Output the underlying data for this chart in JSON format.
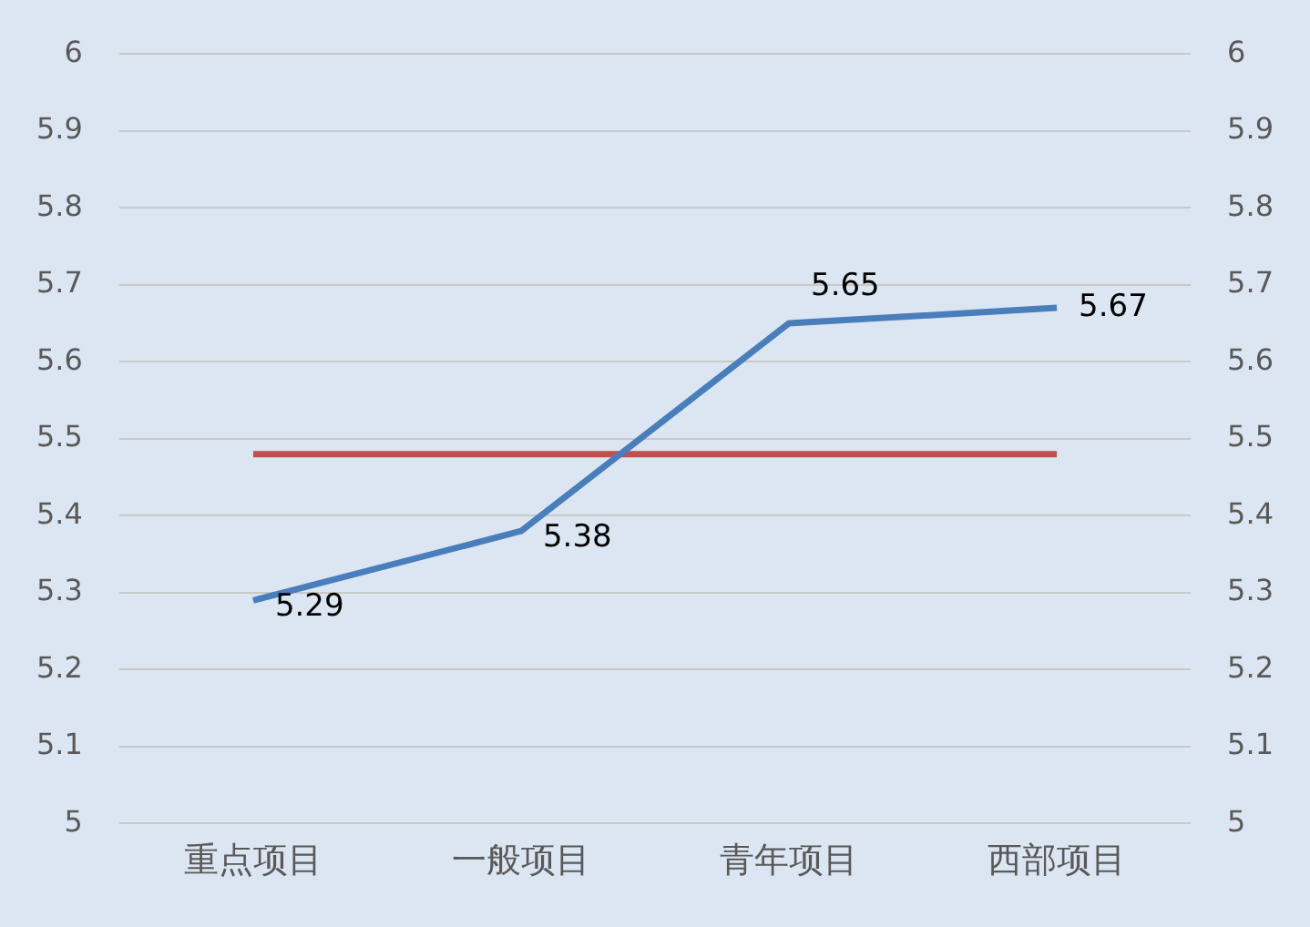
{
  "chart_data": {
    "type": "line",
    "categories": [
      "重点项目",
      "一般项目",
      "青年项目",
      "西部项目"
    ],
    "series": [
      {
        "color": "#4a7ebb",
        "values": [
          5.29,
          5.38,
          5.65,
          5.67
        ],
        "value_labels": [
          "5.29",
          "5.38",
          "5.65",
          "5.67"
        ]
      },
      {
        "color": "#c0504d",
        "values": [
          5.48,
          5.48,
          5.48,
          5.48
        ]
      }
    ],
    "ylim": [
      5,
      6
    ],
    "yticks": [
      5,
      5.1,
      5.2,
      5.3,
      5.4,
      5.5,
      5.6,
      5.7,
      5.8,
      5.9,
      6
    ],
    "y2lim": [
      5,
      6
    ],
    "y2ticks": [
      5,
      5.1,
      5.2,
      5.3,
      5.4,
      5.5,
      5.6,
      5.7,
      5.8,
      5.9,
      6
    ],
    "grid": "y",
    "legend": false,
    "marker": "none",
    "line_style": "solid"
  }
}
